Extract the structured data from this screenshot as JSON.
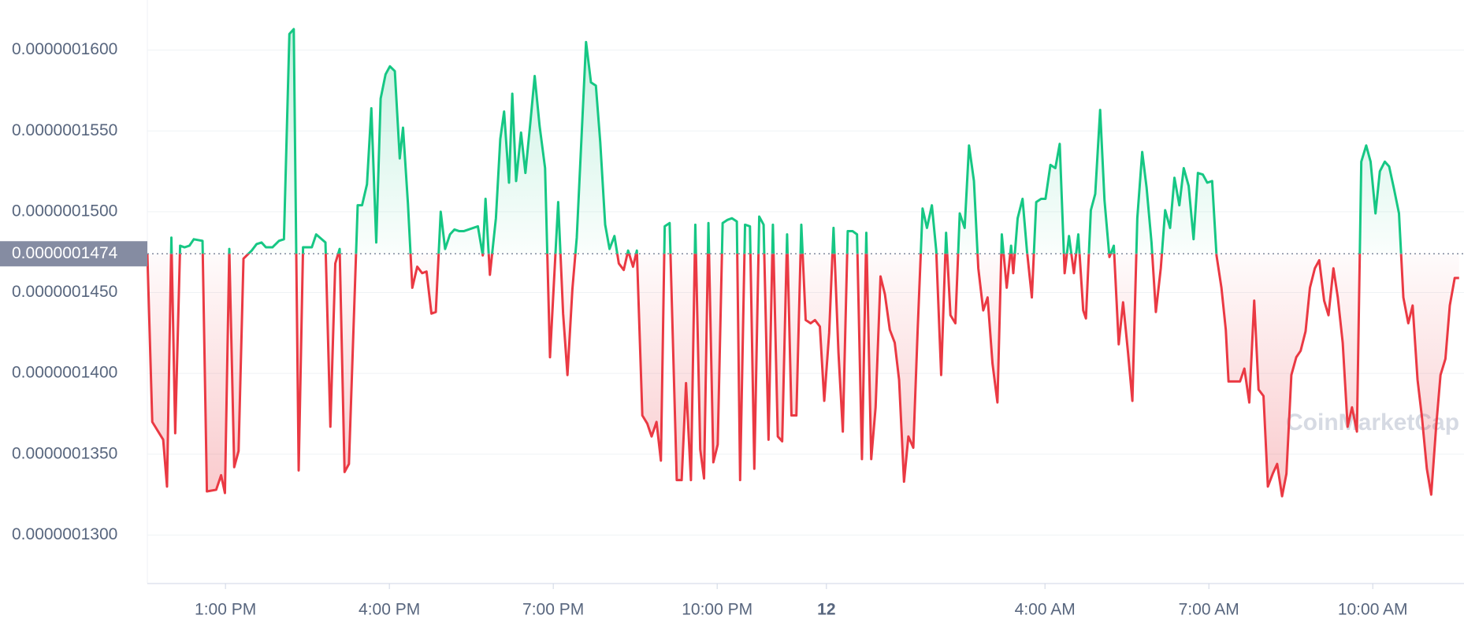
{
  "chart_data": {
    "type": "line",
    "reference": {
      "value": 1.474e-07,
      "label": "0.0000001474"
    },
    "watermark": "CoinMarketCap",
    "xlim": [
      11.57,
      35.67
    ],
    "xticks": [
      {
        "value": 13,
        "label": "1:00 PM"
      },
      {
        "value": 16,
        "label": "4:00 PM"
      },
      {
        "value": 19,
        "label": "7:00 PM"
      },
      {
        "value": 22,
        "label": "10:00 PM"
      },
      {
        "value": 24,
        "label": "12"
      },
      {
        "value": 28,
        "label": "4:00 AM"
      },
      {
        "value": 31,
        "label": "7:00 AM"
      },
      {
        "value": 34,
        "label": "10:00 AM"
      }
    ],
    "ylim": [
      1.27e-07,
      1.631e-07
    ],
    "yticks": [
      {
        "value": 1.3e-07,
        "label": "0.0000001300"
      },
      {
        "value": 1.35e-07,
        "label": "0.0000001350"
      },
      {
        "value": 1.4e-07,
        "label": "0.0000001400"
      },
      {
        "value": 1.45e-07,
        "label": "0.0000001450"
      },
      {
        "value": 1.5e-07,
        "label": "0.0000001500"
      },
      {
        "value": 1.55e-07,
        "label": "0.0000001550"
      },
      {
        "value": 1.6e-07,
        "label": "0.0000001600"
      }
    ],
    "grid": true,
    "up_color": "#16c784",
    "down_color": "#ea3943",
    "x": [
      11.57,
      11.66,
      11.86,
      11.93,
      12.01,
      12.08,
      12.17,
      12.25,
      12.34,
      12.42,
      12.58,
      12.66,
      12.83,
      12.92,
      12.99,
      13.07,
      13.16,
      13.24,
      13.33,
      13.48,
      13.57,
      13.66,
      13.74,
      13.86,
      13.98,
      14.07,
      14.17,
      14.25,
      14.34,
      14.42,
      14.58,
      14.66,
      14.83,
      14.92,
      15.01,
      15.09,
      15.18,
      15.26,
      15.42,
      15.5,
      15.59,
      15.67,
      15.76,
      15.84,
      15.93,
      16.01,
      16.1,
      16.19,
      16.25,
      16.34,
      16.42,
      16.51,
      16.6,
      16.68,
      16.77,
      16.85,
      16.94,
      17.02,
      17.11,
      17.19,
      17.28,
      17.36,
      17.45,
      17.62,
      17.71,
      17.76,
      17.84,
      17.95,
      18.03,
      18.1,
      18.19,
      18.25,
      18.32,
      18.41,
      18.49,
      18.58,
      18.66,
      18.75,
      18.85,
      18.94,
      19.09,
      19.18,
      19.26,
      19.35,
      19.43,
      19.6,
      19.69,
      19.78,
      19.86,
      19.95,
      20.03,
      20.12,
      20.2,
      20.29,
      20.37,
      20.46,
      20.53,
      20.63,
      20.72,
      20.8,
      20.89,
      20.97,
      21.04,
      21.13,
      21.26,
      21.35,
      21.43,
      21.52,
      21.6,
      21.69,
      21.76,
      21.84,
      21.93,
      22.01,
      22.1,
      22.19,
      22.27,
      22.36,
      22.42,
      22.51,
      22.6,
      22.68,
      22.77,
      22.85,
      22.94,
      23.02,
      23.11,
      23.19,
      23.28,
      23.36,
      23.45,
      23.54,
      23.62,
      23.71,
      23.79,
      23.88,
      23.96,
      24.05,
      24.13,
      24.22,
      24.3,
      24.39,
      24.48,
      24.56,
      24.65,
      24.73,
      24.82,
      24.9,
      24.99,
      25.07,
      25.16,
      25.25,
      25.33,
      25.42,
      25.5,
      25.59,
      25.67,
      25.76,
      25.84,
      25.93,
      26.01,
      26.1,
      26.19,
      26.27,
      26.36,
      26.44,
      26.53,
      26.61,
      26.7,
      26.78,
      26.87,
      26.95,
      27.04,
      27.13,
      27.21,
      27.3,
      27.38,
      27.42,
      27.5,
      27.59,
      27.67,
      27.76,
      27.84,
      27.93,
      28.01,
      28.1,
      28.19,
      28.27,
      28.36,
      28.44,
      28.53,
      28.61,
      28.7,
      28.75,
      28.84,
      28.92,
      29.01,
      29.09,
      29.18,
      29.26,
      29.35,
      29.43,
      29.52,
      29.6,
      29.69,
      29.78,
      29.86,
      29.95,
      30.03,
      30.12,
      30.2,
      30.29,
      30.37,
      30.46,
      30.54,
      30.63,
      30.72,
      30.8,
      30.89,
      30.97,
      31.06,
      31.14,
      31.23,
      31.31,
      31.36,
      31.47,
      31.57,
      31.65,
      31.74,
      31.83,
      31.91,
      32.0,
      32.08,
      32.17,
      32.25,
      32.34,
      32.42,
      32.51,
      32.6,
      32.68,
      32.77,
      32.85,
      32.94,
      33.02,
      33.11,
      33.19,
      33.28,
      33.36,
      33.45,
      33.54,
      33.62,
      33.71,
      33.79,
      33.88,
      33.96,
      34.05,
      34.13,
      34.22,
      34.3,
      34.39,
      34.48,
      34.56,
      34.65,
      34.73,
      34.82,
      34.9,
      34.99,
      35.07,
      35.16,
      35.24,
      35.33,
      35.41,
      35.5,
      35.58
    ],
    "values": [
      1.474e-07,
      1.37e-07,
      1.359e-07,
      1.33e-07,
      1.484e-07,
      1.363e-07,
      1.479e-07,
      1.478e-07,
      1.479e-07,
      1.483e-07,
      1.482e-07,
      1.327e-07,
      1.328e-07,
      1.337e-07,
      1.326e-07,
      1.477e-07,
      1.342e-07,
      1.352e-07,
      1.471e-07,
      1.476e-07,
      1.48e-07,
      1.481e-07,
      1.478e-07,
      1.478e-07,
      1.482e-07,
      1.483e-07,
      1.61e-07,
      1.613e-07,
      1.34e-07,
      1.478e-07,
      1.478e-07,
      1.486e-07,
      1.481e-07,
      1.367e-07,
      1.468e-07,
      1.477e-07,
      1.339e-07,
      1.344e-07,
      1.504e-07,
      1.504e-07,
      1.517e-07,
      1.564e-07,
      1.481e-07,
      1.57e-07,
      1.585e-07,
      1.59e-07,
      1.587e-07,
      1.533e-07,
      1.552e-07,
      1.505e-07,
      1.453e-07,
      1.466e-07,
      1.462e-07,
      1.463e-07,
      1.437e-07,
      1.438e-07,
      1.5e-07,
      1.477e-07,
      1.486e-07,
      1.489e-07,
      1.488e-07,
      1.488e-07,
      1.489e-07,
      1.491e-07,
      1.473e-07,
      1.508e-07,
      1.461e-07,
      1.496e-07,
      1.545e-07,
      1.562e-07,
      1.518e-07,
      1.573e-07,
      1.519e-07,
      1.549e-07,
      1.524e-07,
      1.555e-07,
      1.584e-07,
      1.553e-07,
      1.527e-07,
      1.41e-07,
      1.506e-07,
      1.437e-07,
      1.399e-07,
      1.452e-07,
      1.484e-07,
      1.605e-07,
      1.58e-07,
      1.578e-07,
      1.543e-07,
      1.492e-07,
      1.477e-07,
      1.485e-07,
      1.468e-07,
      1.464e-07,
      1.476e-07,
      1.466e-07,
      1.476e-07,
      1.374e-07,
      1.369e-07,
      1.361e-07,
      1.37e-07,
      1.346e-07,
      1.491e-07,
      1.493e-07,
      1.334e-07,
      1.334e-07,
      1.394e-07,
      1.334e-07,
      1.492e-07,
      1.353e-07,
      1.335e-07,
      1.493e-07,
      1.345e-07,
      1.356e-07,
      1.493e-07,
      1.495e-07,
      1.496e-07,
      1.494e-07,
      1.334e-07,
      1.492e-07,
      1.491e-07,
      1.341e-07,
      1.497e-07,
      1.492e-07,
      1.359e-07,
      1.492e-07,
      1.361e-07,
      1.358e-07,
      1.486e-07,
      1.374e-07,
      1.374e-07,
      1.492e-07,
      1.433e-07,
      1.431e-07,
      1.433e-07,
      1.429e-07,
      1.383e-07,
      1.425e-07,
      1.49e-07,
      1.413e-07,
      1.364e-07,
      1.488e-07,
      1.488e-07,
      1.486e-07,
      1.347e-07,
      1.487e-07,
      1.347e-07,
      1.379e-07,
      1.46e-07,
      1.449e-07,
      1.427e-07,
      1.419e-07,
      1.396e-07,
      1.333e-07,
      1.361e-07,
      1.354e-07,
      1.427e-07,
      1.502e-07,
      1.49e-07,
      1.504e-07,
      1.476e-07,
      1.399e-07,
      1.487e-07,
      1.436e-07,
      1.431e-07,
      1.499e-07,
      1.49e-07,
      1.541e-07,
      1.519e-07,
      1.465e-07,
      1.439e-07,
      1.447e-07,
      1.406e-07,
      1.382e-07,
      1.486e-07,
      1.453e-07,
      1.479e-07,
      1.462e-07,
      1.496e-07,
      1.508e-07,
      1.476e-07,
      1.447e-07,
      1.506e-07,
      1.508e-07,
      1.508e-07,
      1.529e-07,
      1.527e-07,
      1.542e-07,
      1.462e-07,
      1.485e-07,
      1.462e-07,
      1.486e-07,
      1.439e-07,
      1.434e-07,
      1.501e-07,
      1.511e-07,
      1.563e-07,
      1.507e-07,
      1.472e-07,
      1.479e-07,
      1.418e-07,
      1.444e-07,
      1.413e-07,
      1.383e-07,
      1.496e-07,
      1.537e-07,
      1.515e-07,
      1.481e-07,
      1.438e-07,
      1.465e-07,
      1.501e-07,
      1.49e-07,
      1.521e-07,
      1.504e-07,
      1.527e-07,
      1.516e-07,
      1.483e-07,
      1.524e-07,
      1.523e-07,
      1.518e-07,
      1.519e-07,
      1.473e-07,
      1.453e-07,
      1.427e-07,
      1.395e-07,
      1.395e-07,
      1.395e-07,
      1.403e-07,
      1.382e-07,
      1.445e-07,
      1.39e-07,
      1.386e-07,
      1.33e-07,
      1.338e-07,
      1.344e-07,
      1.324e-07,
      1.338e-07,
      1.399e-07,
      1.41e-07,
      1.414e-07,
      1.426e-07,
      1.453e-07,
      1.465e-07,
      1.47e-07,
      1.445e-07,
      1.436e-07,
      1.465e-07,
      1.447e-07,
      1.419e-07,
      1.367e-07,
      1.379e-07,
      1.364e-07,
      1.531e-07,
      1.541e-07,
      1.531e-07,
      1.499e-07,
      1.525e-07,
      1.531e-07,
      1.528e-07,
      1.514e-07,
      1.499e-07,
      1.447e-07,
      1.431e-07,
      1.442e-07,
      1.396e-07,
      1.373e-07,
      1.341e-07,
      1.325e-07,
      1.367e-07,
      1.399e-07,
      1.409e-07,
      1.442e-07,
      1.459e-07,
      1.459e-07
    ]
  }
}
